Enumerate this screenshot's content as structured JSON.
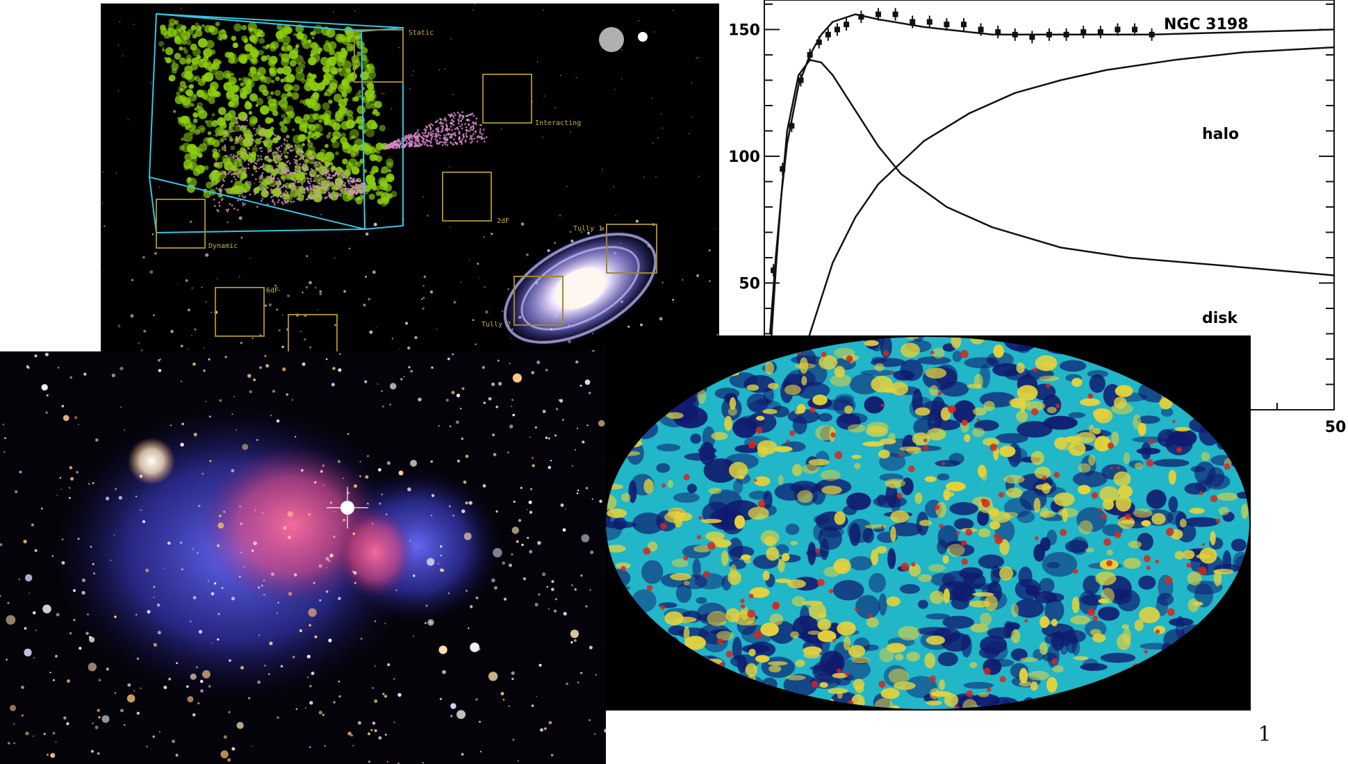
{
  "slide": {
    "number": "1"
  },
  "lss_panel": {
    "labels": [
      "Static",
      "Interacting",
      "2dF",
      "Tully 1",
      "Dynamic",
      "6dF",
      "Tully 2"
    ],
    "accent_colors": {
      "box_cyan": "#39c6e0",
      "box_gold": "#a08a2a",
      "points_green": "#8ccf10",
      "points_pink": "#d98ccf"
    }
  },
  "rotation_curve": {
    "galaxy_label": "NGC 3198",
    "halo_label": "halo",
    "disk_label": "disk",
    "y_ticks": [
      "50",
      "100",
      "150"
    ],
    "x_tick": "50"
  },
  "chart_data": {
    "type": "line",
    "title": "NGC 3198",
    "xlabel": "",
    "ylabel": "",
    "xlim": [
      0,
      50
    ],
    "ylim": [
      0,
      200
    ],
    "series": [
      {
        "name": "",
        "x": [
          0.5,
          1,
          1.5,
          2,
          3,
          4,
          5,
          6,
          8,
          10,
          14,
          20,
          26,
          34,
          42,
          50
        ],
        "y": [
          20,
          55,
          85,
          105,
          128,
          140,
          148,
          153,
          156,
          154,
          151,
          148,
          148,
          148,
          149,
          150
        ]
      },
      {
        "name": "halo",
        "x": [
          2,
          4,
          6,
          8,
          10,
          14,
          18,
          22,
          26,
          30,
          36,
          42,
          50
        ],
        "y": [
          0,
          30,
          58,
          76,
          89,
          106,
          117,
          125,
          130,
          134,
          138,
          141,
          143
        ]
      },
      {
        "name": "disk",
        "x": [
          0.5,
          1,
          2,
          3,
          4,
          5,
          6,
          8,
          10,
          12,
          16,
          20,
          26,
          32,
          40,
          50
        ],
        "y": [
          30,
          60,
          110,
          132,
          138,
          137,
          132,
          118,
          104,
          93,
          80,
          72,
          64,
          60,
          57,
          53
        ]
      },
      {
        "name": "data points",
        "x": [
          0.8,
          1.6,
          2.4,
          3.2,
          4,
          4.8,
          5.6,
          6.4,
          7.2,
          8.5,
          10,
          11.5,
          13,
          14.5,
          16,
          17.5,
          19,
          20.5,
          22,
          23.5,
          25,
          26.5,
          28,
          29.5,
          31,
          32.5,
          34
        ],
        "y": [
          55,
          95,
          112,
          130,
          140,
          145,
          148,
          150,
          152,
          155,
          156,
          156,
          153,
          153,
          152,
          152,
          150,
          149,
          148,
          147,
          148,
          148,
          149,
          149,
          150,
          150,
          148
        ]
      }
    ]
  },
  "cmb_panel": {
    "colors": {
      "deep": "#101a6e",
      "mid": "#21b6c8",
      "warm": "#e6d23a",
      "hot": "#d8261c"
    }
  },
  "bullet_panel": {
    "colors": {
      "pink": "#ff4f84",
      "blue": "#4b52ff"
    }
  }
}
